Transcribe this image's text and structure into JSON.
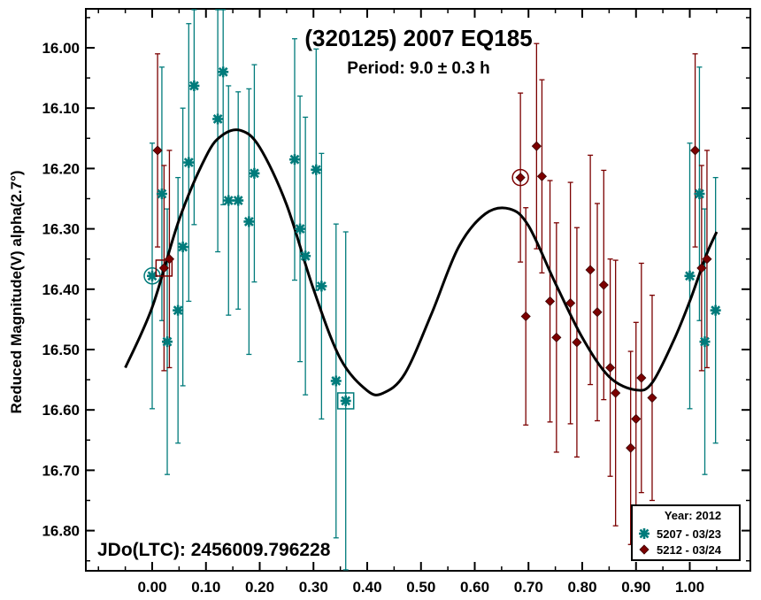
{
  "chart_data": {
    "type": "scatter",
    "title": "(320125) 2007 EQ185",
    "subtitle": "Period: 9.0 ± 0.3 h",
    "xlabel": "",
    "ylabel": "Reduced Magnitude(V) alpha(2.7°)",
    "annotation": "JDo(LTC): 2456009.796228",
    "xlim": [
      -0.125,
      1.125
    ],
    "ylim": [
      16.88,
      15.94
    ],
    "y_inverted": true,
    "grid": false,
    "legend_position": "bottom-right",
    "legend_title": "Year: 2012",
    "x_ticks": [
      "0.00",
      "0.10",
      "0.20",
      "0.30",
      "0.40",
      "0.50",
      "0.60",
      "0.70",
      "0.80",
      "0.90",
      "1.00"
    ],
    "x_tick_values": [
      0,
      0.1,
      0.2,
      0.3,
      0.4,
      0.5,
      0.6,
      0.7,
      0.8,
      0.9,
      1.0
    ],
    "y_ticks": [
      "16.00",
      "16.10",
      "16.20",
      "16.30",
      "16.40",
      "16.50",
      "16.60",
      "16.70",
      "16.80"
    ],
    "y_tick_values": [
      16.0,
      16.1,
      16.2,
      16.3,
      16.4,
      16.5,
      16.6,
      16.7,
      16.8
    ],
    "series": [
      {
        "name": "5207 - 03/23",
        "color": "#007b7b",
        "marker": "asterisk",
        "points": [
          {
            "x": 0.0,
            "y": 16.378,
            "err": 0.22
          },
          {
            "x": 0.018,
            "y": 16.242,
            "err": 0.21
          },
          {
            "x": 0.028,
            "y": 16.487,
            "err": 0.22
          },
          {
            "x": 0.048,
            "y": 16.435,
            "err": 0.22
          },
          {
            "x": 0.057,
            "y": 16.33,
            "err": 0.23
          },
          {
            "x": 0.068,
            "y": 16.19,
            "err": 0.23
          },
          {
            "x": 0.078,
            "y": 16.063,
            "err": 0.23
          },
          {
            "x": 0.122,
            "y": 16.118,
            "err": 0.22
          },
          {
            "x": 0.132,
            "y": 16.04,
            "err": 0.22
          },
          {
            "x": 0.142,
            "y": 16.253,
            "err": 0.19
          },
          {
            "x": 0.16,
            "y": 16.253,
            "err": 0.18
          },
          {
            "x": 0.18,
            "y": 16.288,
            "err": 0.22
          },
          {
            "x": 0.19,
            "y": 16.208,
            "err": 0.18
          },
          {
            "x": 0.265,
            "y": 16.185,
            "err": 0.2
          },
          {
            "x": 0.275,
            "y": 16.3,
            "err": 0.22
          },
          {
            "x": 0.285,
            "y": 16.345,
            "err": 0.23
          },
          {
            "x": 0.305,
            "y": 16.202,
            "err": 0.2
          },
          {
            "x": 0.315,
            "y": 16.395,
            "err": 0.22
          },
          {
            "x": 0.342,
            "y": 16.552,
            "err": 0.26
          },
          {
            "x": 0.36,
            "y": 16.585,
            "err": 0.28
          },
          {
            "x": 1.0,
            "y": 16.378,
            "err": 0.22
          },
          {
            "x": 1.018,
            "y": 16.242,
            "err": 0.21
          },
          {
            "x": 1.028,
            "y": 16.487,
            "err": 0.22
          },
          {
            "x": 1.048,
            "y": 16.435,
            "err": 0.22
          }
        ]
      },
      {
        "name": "5212 - 03/24",
        "color": "#7b0000",
        "marker": "diamond",
        "points": [
          {
            "x": 0.01,
            "y": 16.17,
            "err": 0.16
          },
          {
            "x": 0.022,
            "y": 16.365,
            "err": 0.17
          },
          {
            "x": 0.032,
            "y": 16.35,
            "err": 0.18
          },
          {
            "x": 0.685,
            "y": 16.215,
            "err": 0.14
          },
          {
            "x": 0.695,
            "y": 16.445,
            "err": 0.18
          },
          {
            "x": 0.715,
            "y": 16.163,
            "err": 0.17
          },
          {
            "x": 0.725,
            "y": 16.213,
            "err": 0.16
          },
          {
            "x": 0.74,
            "y": 16.42,
            "err": 0.2
          },
          {
            "x": 0.752,
            "y": 16.48,
            "err": 0.19
          },
          {
            "x": 0.778,
            "y": 16.423,
            "err": 0.2
          },
          {
            "x": 0.79,
            "y": 16.488,
            "err": 0.19
          },
          {
            "x": 0.815,
            "y": 16.368,
            "err": 0.19
          },
          {
            "x": 0.828,
            "y": 16.438,
            "err": 0.18
          },
          {
            "x": 0.84,
            "y": 16.393,
            "err": 0.19
          },
          {
            "x": 0.852,
            "y": 16.53,
            "err": 0.18
          },
          {
            "x": 0.862,
            "y": 16.572,
            "err": 0.22
          },
          {
            "x": 0.89,
            "y": 16.663,
            "err": 0.16
          },
          {
            "x": 0.9,
            "y": 16.615,
            "err": 0.16
          },
          {
            "x": 0.91,
            "y": 16.547,
            "err": 0.19
          },
          {
            "x": 0.93,
            "y": 16.58,
            "err": 0.17
          },
          {
            "x": 1.01,
            "y": 16.17,
            "err": 0.16
          },
          {
            "x": 1.022,
            "y": 16.365,
            "err": 0.17
          },
          {
            "x": 1.032,
            "y": 16.35,
            "err": 0.18
          }
        ]
      }
    ],
    "highlighted_points": [
      {
        "series": "5207 - 03/23",
        "x": 0.0,
        "y": 16.378,
        "shape": "circle"
      },
      {
        "series": "5207 - 03/23",
        "x": 0.36,
        "y": 16.585,
        "shape": "square"
      },
      {
        "series": "5212 - 03/24",
        "x": 0.685,
        "y": 16.215,
        "shape": "circle"
      },
      {
        "series": "5212 - 03/24",
        "x": 0.022,
        "y": 16.365,
        "shape": "square"
      }
    ],
    "fit_curve": {
      "color": "#000000",
      "points": [
        [
          -0.05,
          16.53
        ],
        [
          0.0,
          16.43
        ],
        [
          0.05,
          16.285
        ],
        [
          0.1,
          16.18
        ],
        [
          0.13,
          16.145
        ],
        [
          0.165,
          16.137
        ],
        [
          0.2,
          16.165
        ],
        [
          0.25,
          16.26
        ],
        [
          0.3,
          16.4
        ],
        [
          0.35,
          16.515
        ],
        [
          0.4,
          16.568
        ],
        [
          0.43,
          16.572
        ],
        [
          0.47,
          16.54
        ],
        [
          0.52,
          16.44
        ],
        [
          0.57,
          16.33
        ],
        [
          0.62,
          16.275
        ],
        [
          0.665,
          16.267
        ],
        [
          0.7,
          16.295
        ],
        [
          0.75,
          16.39
        ],
        [
          0.8,
          16.48
        ],
        [
          0.85,
          16.545
        ],
        [
          0.9,
          16.567
        ],
        [
          0.93,
          16.555
        ],
        [
          0.97,
          16.485
        ],
        [
          1.0,
          16.42
        ],
        [
          1.03,
          16.345
        ],
        [
          1.05,
          16.305
        ]
      ]
    }
  }
}
